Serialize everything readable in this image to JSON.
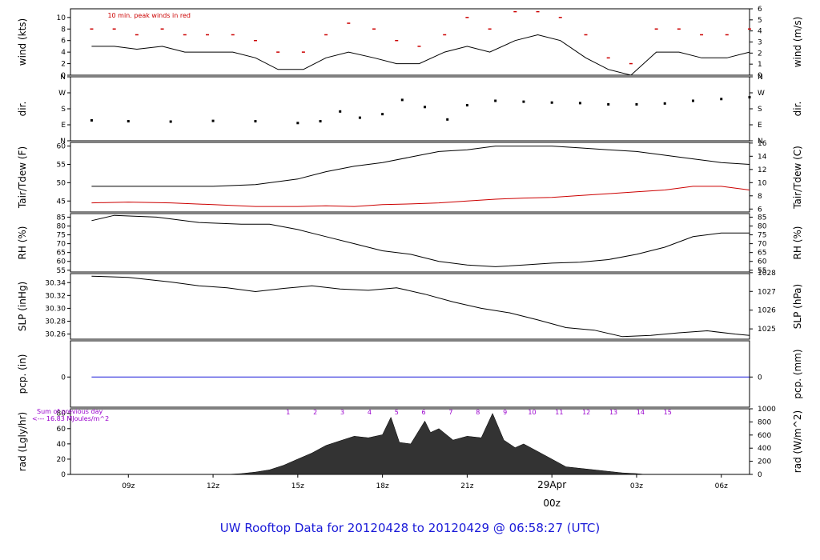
{
  "footer": {
    "title": "UW Rooftop Data for 20120428  to  20120429 @ 06:58:27  (UTC)"
  },
  "colors": {
    "primary": "#000000",
    "accent_red": "#cc0000",
    "accent_blue": "#1a1ad8",
    "accent_purple": "#9900cc"
  },
  "time_axis": {
    "ticks": [
      "09z",
      "12z",
      "15z",
      "18z",
      "21z",
      "29Apr",
      "03z",
      "06z"
    ],
    "day_marker": {
      "date": "29Apr",
      "hour": "00z"
    }
  },
  "chart_data": [
    {
      "type": "line",
      "name": "wind",
      "ylabel_left": "wind (kts)",
      "ylabel_right": "wind (m/s)",
      "left_ticks": [
        "0",
        "2",
        "4",
        "6",
        "8",
        "10"
      ],
      "right_ticks": [
        "0",
        "1",
        "2",
        "3",
        "4",
        "5",
        "6"
      ],
      "ylim_left": [
        0,
        11.5
      ],
      "ylim_right": [
        0,
        6
      ],
      "annotation": "10 min. peak winds in red",
      "x": [
        7.7,
        8.5,
        9.3,
        10.2,
        11.0,
        11.8,
        12.7,
        13.5,
        14.3,
        15.2,
        16.0,
        16.8,
        17.7,
        18.5,
        19.3,
        20.2,
        21.0,
        21.8,
        22.7,
        23.5,
        24.3,
        25.2,
        26.0,
        26.8,
        27.7,
        28.5,
        29.3,
        30.2,
        31.0
      ],
      "values": [
        5,
        5,
        4.5,
        5,
        4,
        4,
        4,
        3,
        1,
        1,
        3,
        4,
        3,
        2,
        2,
        4,
        5,
        4,
        6,
        7,
        6,
        3,
        1,
        0,
        4,
        4,
        3,
        3,
        4
      ],
      "peak_values": [
        8,
        8,
        7,
        8,
        7,
        7,
        7,
        6,
        4,
        4,
        7,
        9,
        8,
        6,
        5,
        7,
        10,
        8,
        11,
        11,
        10,
        7,
        3,
        2,
        8,
        8,
        7,
        7,
        8
      ]
    },
    {
      "type": "scatter",
      "name": "dir",
      "ylabel_left": "dir.",
      "ylabel_right": "dir.",
      "ticks": [
        "N",
        "E",
        "S",
        "W",
        "N"
      ],
      "ylim": [
        0,
        360
      ],
      "x": [
        7.7,
        9.0,
        10.5,
        12.0,
        13.5,
        15.0,
        15.8,
        16.5,
        17.2,
        18.0,
        18.7,
        19.5,
        20.3,
        21.0,
        22.0,
        23.0,
        24.0,
        25.0,
        26.0,
        27.0,
        28.0,
        29.0,
        30.0,
        31.0
      ],
      "values": [
        115,
        110,
        108,
        112,
        110,
        100,
        110,
        165,
        130,
        150,
        230,
        190,
        120,
        200,
        225,
        220,
        215,
        212,
        205,
        205,
        210,
        225,
        235,
        245
      ]
    },
    {
      "type": "line",
      "name": "tair_tdew",
      "ylabel_left": "Tair/Tdew (F)",
      "ylabel_right": "Tair/Tdew (C)",
      "left_ticks": [
        "45",
        "50",
        "55",
        "60"
      ],
      "right_ticks": [
        "6",
        "8",
        "10",
        "12",
        "14",
        "16"
      ],
      "ylim_left": [
        42,
        61
      ],
      "ylim_right": [
        5.55,
        16.1
      ],
      "x": [
        7.7,
        9.0,
        10.5,
        12.0,
        13.5,
        15.0,
        16.0,
        17.0,
        18.0,
        19.0,
        20.0,
        21.0,
        22.0,
        23.0,
        24.0,
        25.0,
        26.0,
        27.0,
        28.0,
        29.0,
        30.0,
        31.0
      ],
      "tair": [
        49,
        49,
        49,
        49,
        49.5,
        51,
        53,
        54.5,
        55.5,
        57,
        58.5,
        59,
        60,
        60,
        60,
        59.5,
        59,
        58.5,
        57.5,
        56.5,
        55.5,
        55
      ],
      "tdew": [
        44.5,
        44.7,
        44.5,
        44,
        43.5,
        43.5,
        43.7,
        43.5,
        44,
        44.2,
        44.5,
        45,
        45.5,
        45.8,
        46,
        46.5,
        47,
        47.5,
        48,
        49,
        49,
        48
      ]
    },
    {
      "type": "line",
      "name": "rh",
      "ylabel_left": "RH (%)",
      "ylabel_right": "RH (%)",
      "ticks": [
        "55",
        "60",
        "65",
        "70",
        "75",
        "80",
        "85"
      ],
      "ylim": [
        54,
        87
      ],
      "x": [
        7.7,
        8.5,
        10.0,
        11.5,
        13.0,
        14.0,
        15.0,
        16.0,
        17.0,
        18.0,
        19.0,
        20.0,
        21.0,
        22.0,
        23.0,
        24.0,
        25.0,
        26.0,
        27.0,
        28.0,
        29.0,
        30.0,
        31.0
      ],
      "values": [
        83,
        86,
        85,
        82,
        81,
        81,
        78,
        74,
        70,
        66,
        64,
        60,
        58,
        57,
        58,
        59,
        59.5,
        61,
        64,
        68,
        74,
        76,
        76
      ]
    },
    {
      "type": "line",
      "name": "slp",
      "ylabel_left": "SLP (inHg)",
      "ylabel_right": "SLP (hPa)",
      "left_ticks": [
        "30.26",
        "30.28",
        "30.30",
        "30.32",
        "30.34"
      ],
      "right_ticks": [
        "1025",
        "1026",
        "1027",
        "1028"
      ],
      "ylim_left": [
        30.252,
        30.354
      ],
      "ylim_right": [
        1024.45,
        1027.95
      ],
      "x": [
        7.7,
        9.0,
        10.5,
        11.5,
        12.5,
        13.5,
        14.5,
        15.5,
        16.5,
        17.5,
        18.5,
        19.5,
        20.5,
        21.5,
        22.5,
        23.5,
        24.5,
        25.5,
        26.5,
        27.5,
        28.5,
        29.5,
        30.5,
        31.0
      ],
      "values": [
        30.35,
        30.348,
        30.341,
        30.335,
        30.332,
        30.326,
        30.331,
        30.335,
        30.33,
        30.328,
        30.332,
        30.322,
        30.31,
        30.3,
        30.293,
        30.282,
        30.27,
        30.266,
        30.256,
        30.258,
        30.262,
        30.265,
        30.26,
        30.258
      ]
    },
    {
      "type": "line",
      "name": "pcp",
      "ylabel_left": "pcp. (in)",
      "ylabel_right": "pcp. (mm)",
      "left_ticks": [
        "0"
      ],
      "right_ticks": [
        "0"
      ],
      "ylim": [
        -1,
        1.2
      ],
      "x": [
        7.7,
        31.0
      ],
      "values": [
        0,
        0
      ]
    },
    {
      "type": "area",
      "name": "rad",
      "ylabel_left": "rad (Lgly/hr)",
      "ylabel_right": "rad (W/m^2)",
      "left_ticks": [
        "0",
        "20",
        "40",
        "60",
        "80"
      ],
      "right_ticks": [
        "0",
        "200",
        "400",
        "600",
        "800",
        "1000"
      ],
      "ylim_left": [
        0,
        86
      ],
      "ylim_right": [
        0,
        1000
      ],
      "sum_label": "Sum of previous day",
      "sum_value": "<--- 16.83 MJoules/m^2",
      "hour_markers": [
        "1",
        "2",
        "3",
        "4",
        "5",
        "6",
        "7",
        "8",
        "9",
        "10",
        "11",
        "12",
        "13",
        "14",
        "15"
      ],
      "x": [
        12.5,
        13.0,
        13.5,
        14.0,
        14.5,
        15.0,
        15.5,
        16.0,
        16.5,
        17.0,
        17.5,
        18.0,
        18.3,
        18.6,
        19.0,
        19.5,
        19.7,
        20.0,
        20.5,
        21.0,
        21.5,
        21.9,
        22.3,
        22.7,
        23.0,
        23.5,
        24.0,
        24.5,
        25.0,
        25.5,
        26.0,
        26.5,
        27.0,
        27.3
      ],
      "values": [
        0,
        1,
        3,
        6,
        12,
        20,
        28,
        38,
        44,
        50,
        48,
        52,
        75,
        42,
        40,
        70,
        55,
        60,
        45,
        50,
        48,
        80,
        45,
        35,
        40,
        30,
        20,
        10,
        8,
        6,
        4,
        2,
        1,
        0
      ]
    }
  ]
}
